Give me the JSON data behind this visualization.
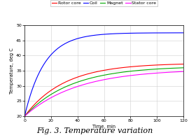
{
  "title": "Fig. 3. Temperature variation",
  "xlabel": "Time, min",
  "ylabel": "Temperature, deg C",
  "xlim": [
    0,
    120
  ],
  "ylim": [
    20,
    50
  ],
  "yticks": [
    20,
    25,
    30,
    35,
    40,
    45,
    50
  ],
  "xticks": [
    0,
    20,
    40,
    60,
    80,
    100,
    120
  ],
  "series": [
    {
      "label": "Rotor core",
      "color": "#ff0000",
      "T_inf": 37.5,
      "T0": 20,
      "tau": 30
    },
    {
      "label": "Coil",
      "color": "#0000ff",
      "T_inf": 47.5,
      "T0": 20,
      "tau": 15
    },
    {
      "label": "Magnet",
      "color": "#00aa00",
      "T_inf": 36.5,
      "T0": 20,
      "tau": 35
    },
    {
      "label": "Stator core",
      "color": "#ff00ff",
      "T_inf": 35.5,
      "T0": 20,
      "tau": 40
    }
  ],
  "background_color": "#ffffff",
  "grid_color": "#d0d0d0",
  "legend_fontsize": 4.5,
  "axis_fontsize": 4.8,
  "tick_fontsize": 4.5,
  "title_fontsize": 8.0,
  "linewidth": 0.8
}
